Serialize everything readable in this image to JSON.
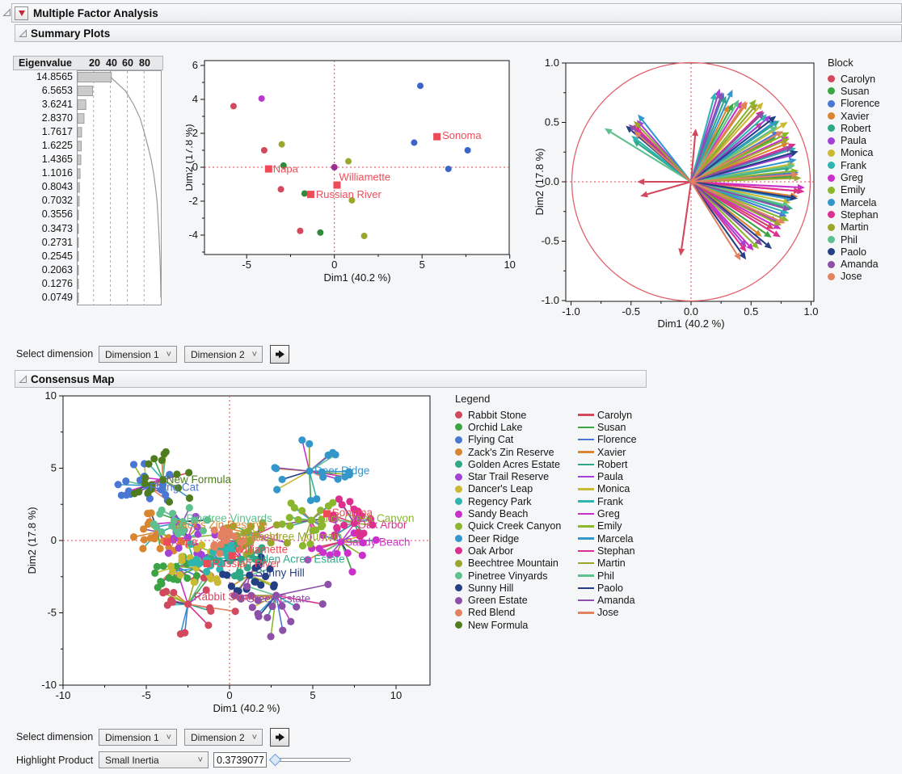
{
  "app": {
    "title": "Multiple Factor Analysis"
  },
  "sections": {
    "summary": "Summary Plots",
    "consensus": "Consensus Map"
  },
  "controls": {
    "select_dimension_label": "Select dimension",
    "dim1_value": "Dimension 1",
    "dim2_value": "Dimension 2",
    "highlight_label": "Highlight Product",
    "highlight_mode_value": "Small Inertia",
    "highlight_value": "0.3739077"
  },
  "palette": {
    "raters": [
      {
        "name": "Carolyn",
        "color": "#D2495E"
      },
      {
        "name": "Susan",
        "color": "#3BA545"
      },
      {
        "name": "Florence",
        "color": "#4A77D4"
      },
      {
        "name": "Xavier",
        "color": "#DA8530"
      },
      {
        "name": "Robert",
        "color": "#2EA886"
      },
      {
        "name": "Paula",
        "color": "#A242D6"
      },
      {
        "name": "Monica",
        "color": "#C9BA32"
      },
      {
        "name": "Frank",
        "color": "#2EB5B0"
      },
      {
        "name": "Greg",
        "color": "#CB30CB"
      },
      {
        "name": "Emily",
        "color": "#8BB62E"
      },
      {
        "name": "Marcela",
        "color": "#3397CB"
      },
      {
        "name": "Stephan",
        "color": "#DD2F90"
      },
      {
        "name": "Martin",
        "color": "#9AA62C"
      },
      {
        "name": "Phil",
        "color": "#5FC08F"
      },
      {
        "name": "Paolo",
        "color": "#253F85"
      },
      {
        "name": "Amanda",
        "color": "#8C50A9"
      },
      {
        "name": "Jose",
        "color": "#E28260"
      }
    ]
  },
  "chart_data": [
    {
      "id": "scree",
      "type": "bar",
      "title": "Eigenvalue",
      "top_axis_ticks": [
        20,
        40,
        60,
        80
      ],
      "eigenvalues": [
        "14.8565",
        "6.5653",
        "3.6241",
        "2.8370",
        "1.7617",
        "1.6225",
        "1.4365",
        "1.1016",
        "0.8043",
        "0.7032",
        "0.3556",
        "0.3473",
        "0.2731",
        "0.2545",
        "0.2063",
        "0.1276",
        "0.0749"
      ],
      "note": "bars are percent of total variance; gray line is cumulative percent"
    },
    {
      "id": "scores",
      "type": "scatter",
      "xlabel": "Dim1  (40.2 %)",
      "ylabel": "Dim2  (17.8 %)",
      "xlim": [
        -7.4,
        10.1
      ],
      "ylim": [
        -5.15,
        6.3
      ],
      "xticks": [
        -5,
        0,
        5,
        10
      ],
      "xminor": [
        -2.5,
        2.5,
        7.5
      ],
      "yticks": [
        -4,
        -2,
        0,
        2,
        4,
        6
      ],
      "yminor": [
        -5,
        -3,
        -1,
        1,
        3,
        5
      ],
      "crosshair_color": "#E8404A",
      "points": [
        {
          "x": -5.75,
          "y": 3.6,
          "color": "#D2495E"
        },
        {
          "x": -4.15,
          "y": 4.05,
          "color": "#B53ACB"
        },
        {
          "x": -4.0,
          "y": 1.0,
          "color": "#D2495E"
        },
        {
          "x": -3.0,
          "y": 1.35,
          "color": "#9AA62C"
        },
        {
          "x": -2.9,
          "y": 0.1,
          "color": "#2E8B3A"
        },
        {
          "x": -3.05,
          "y": -1.3,
          "color": "#D2495E"
        },
        {
          "x": -1.95,
          "y": -3.75,
          "color": "#D2495E"
        },
        {
          "x": -1.7,
          "y": -1.55,
          "color": "#2E8B3A"
        },
        {
          "x": -0.8,
          "y": -3.85,
          "color": "#2E8B3A"
        },
        {
          "x": 0.0,
          "y": 0.0,
          "color": "#992D90"
        },
        {
          "x": 0.8,
          "y": 0.35,
          "color": "#9AA62C"
        },
        {
          "x": 1.0,
          "y": -1.95,
          "color": "#9AA62C"
        },
        {
          "x": 1.7,
          "y": -4.05,
          "color": "#9AA62C"
        },
        {
          "x": 4.9,
          "y": 4.8,
          "color": "#3A66CC"
        },
        {
          "x": 4.55,
          "y": 1.45,
          "color": "#3A66CC"
        },
        {
          "x": 7.6,
          "y": 1.0,
          "color": "#3A66CC"
        },
        {
          "x": 6.5,
          "y": -0.1,
          "color": "#3A66CC"
        }
      ],
      "region_means": [
        {
          "x": 5.85,
          "y": 1.8,
          "label": "Sonoma",
          "dx": 0.3,
          "dy": 0.05
        },
        {
          "x": -3.75,
          "y": -0.1,
          "label": "Napa",
          "dx": 0.25,
          "dy": -0.02
        },
        {
          "x": 0.15,
          "y": -1.05,
          "label": "Williamette",
          "dx": 0.12,
          "dy": 0.45
        },
        {
          "x": -1.35,
          "y": -1.6,
          "label": "Russian River",
          "dx": 0.3,
          "dy": -0.02
        }
      ],
      "mean_color": "#EE4B58"
    },
    {
      "id": "partial_axes",
      "type": "scatter-arrows",
      "legend_title": "Block",
      "xlabel": "Dim1  (40.2 %)",
      "ylabel": "Dim2  (17.8 %)",
      "xtick_labels": [
        "-1.0",
        "-0.5",
        "0.0",
        "0.5",
        "1.0"
      ],
      "ytick_labels": [
        "1.0",
        "0.5",
        "0.0",
        "-0.5",
        "-1.0"
      ],
      "circle_radius": 1.0,
      "circle_color": "#E0636D",
      "crosshair_color": "#E8404A",
      "arrows": [
        [
          0,
          85,
          0.45
        ],
        [
          0,
          180,
          0.45
        ],
        [
          0,
          196,
          0.44
        ],
        [
          0,
          262,
          0.63
        ],
        [
          0,
          40,
          0.78
        ],
        [
          0,
          -5,
          0.92
        ],
        [
          0,
          -30,
          0.8
        ],
        [
          1,
          62,
          0.75
        ],
        [
          1,
          28,
          0.8
        ],
        [
          1,
          3,
          0.88
        ],
        [
          1,
          -35,
          0.82
        ],
        [
          2,
          70,
          0.8
        ],
        [
          2,
          30,
          0.85
        ],
        [
          2,
          5,
          0.9
        ],
        [
          2,
          -20,
          0.85
        ],
        [
          3,
          55,
          0.82
        ],
        [
          3,
          22,
          0.88
        ],
        [
          3,
          -8,
          0.9
        ],
        [
          3,
          -38,
          0.75
        ],
        [
          3,
          64,
          0.72
        ],
        [
          4,
          68,
          0.78
        ],
        [
          4,
          35,
          0.9
        ],
        [
          4,
          8,
          0.85
        ],
        [
          4,
          -15,
          0.88
        ],
        [
          4,
          144,
          0.6
        ],
        [
          5,
          73,
          0.82
        ],
        [
          5,
          40,
          0.87
        ],
        [
          5,
          15,
          0.9
        ],
        [
          5,
          -25,
          0.8
        ],
        [
          5,
          -50,
          0.72
        ],
        [
          5,
          131,
          0.69
        ],
        [
          6,
          48,
          0.9
        ],
        [
          6,
          32,
          0.95
        ],
        [
          6,
          10,
          0.88
        ],
        [
          6,
          -12,
          0.85
        ],
        [
          7,
          75,
          0.78
        ],
        [
          7,
          42,
          0.85
        ],
        [
          7,
          18,
          0.92
        ],
        [
          7,
          -18,
          0.86
        ],
        [
          7,
          142,
          0.63
        ],
        [
          8,
          58,
          0.8
        ],
        [
          8,
          25,
          0.9
        ],
        [
          8,
          -3,
          0.95
        ],
        [
          8,
          -28,
          0.85
        ],
        [
          8,
          -48,
          0.78
        ],
        [
          8,
          136,
          0.66
        ],
        [
          9,
          52,
          0.88
        ],
        [
          9,
          27,
          0.92
        ],
        [
          9,
          6,
          0.9
        ],
        [
          9,
          -22,
          0.88
        ],
        [
          9,
          -45,
          0.8
        ],
        [
          10,
          66,
          0.85
        ],
        [
          10,
          36,
          0.88
        ],
        [
          10,
          12,
          0.9
        ],
        [
          10,
          -10,
          0.87
        ],
        [
          10,
          128,
          0.72
        ],
        [
          11,
          45,
          0.85
        ],
        [
          11,
          20,
          0.93
        ],
        [
          11,
          -5,
          0.95
        ],
        [
          11,
          -32,
          0.88
        ],
        [
          11,
          -52,
          0.75
        ],
        [
          11,
          135,
          0.68
        ],
        [
          12,
          50,
          0.86
        ],
        [
          12,
          24,
          0.9
        ],
        [
          12,
          2,
          0.92
        ],
        [
          12,
          -26,
          0.84
        ],
        [
          12,
          133,
          0.7
        ],
        [
          13,
          60,
          0.8
        ],
        [
          13,
          33,
          0.86
        ],
        [
          13,
          9,
          0.88
        ],
        [
          13,
          -14,
          0.85
        ],
        [
          13,
          148,
          0.85
        ],
        [
          14,
          38,
          0.9
        ],
        [
          14,
          16,
          0.93
        ],
        [
          14,
          -9,
          0.9
        ],
        [
          14,
          -40,
          0.88
        ],
        [
          14,
          -55,
          0.8
        ],
        [
          14,
          139,
          0.72
        ],
        [
          15,
          71,
          0.8
        ],
        [
          15,
          44,
          0.85
        ],
        [
          15,
          19,
          0.9
        ],
        [
          15,
          -16,
          0.86
        ],
        [
          15,
          -42,
          0.8
        ],
        [
          15,
          137,
          0.71
        ],
        [
          16,
          56,
          0.82
        ],
        [
          16,
          29,
          0.88
        ],
        [
          16,
          4,
          0.9
        ],
        [
          16,
          -24,
          0.86
        ],
        [
          16,
          -58,
          0.78
        ],
        [
          16,
          138,
          0.64
        ]
      ]
    },
    {
      "id": "consensus",
      "type": "scatter",
      "legend_title": "Legend",
      "xlabel": "Dim1  (40.2 %)",
      "ylabel": "Dim2  (17.8 %)",
      "xlim": [
        -10,
        12
      ],
      "ylim": [
        -10,
        10
      ],
      "xticks": [
        -10,
        -5,
        0,
        5,
        10
      ],
      "xminor": [
        -7.5,
        -2.5,
        2.5,
        7.5
      ],
      "yticks": [
        -10,
        -5,
        0,
        5,
        10
      ],
      "yminor": [
        -7.5,
        -2.5,
        2.5,
        7.5
      ],
      "crosshair_color": "#E8404A",
      "points_per_cluster": 17,
      "seed": 20240,
      "products": [
        {
          "name": "Rabbit Stone",
          "color": "#D2495E",
          "x": -2.5,
          "y": -4.4,
          "spread": 2.3,
          "label": {
            "show": true,
            "dx": 0.35,
            "dy": 0.5
          }
        },
        {
          "name": "Orchid Lake",
          "color": "#3BA545",
          "x": -3.2,
          "y": -1.8,
          "spread": 1.7,
          "label": {
            "show": false
          }
        },
        {
          "name": "Flying Cat",
          "color": "#4A77D4",
          "x": -5.0,
          "y": 3.8,
          "spread": 1.6,
          "label": {
            "show": true,
            "dx": 0.2,
            "dy": -0.15
          }
        },
        {
          "name": "Zack's Zin Reserve",
          "color": "#DA8530",
          "x": -4.3,
          "y": 0.6,
          "spread": 1.4,
          "label": {
            "show": true,
            "dx": 1.0,
            "dy": 0.45
          }
        },
        {
          "name": "Golden Acres Estate",
          "color": "#2EA886",
          "x": 0.7,
          "y": -1.3,
          "spread": 1.5,
          "label": {
            "show": true,
            "dx": 0.25,
            "dy": 0.0
          }
        },
        {
          "name": "Star Trail Reserve",
          "color": "#A242D6",
          "x": -2.5,
          "y": 0.2,
          "spread": 1.5,
          "label": {
            "show": false
          }
        },
        {
          "name": "Dancer's Leap",
          "color": "#C9BA32",
          "x": -2.0,
          "y": -1.9,
          "spread": 1.6,
          "label": {
            "show": false
          }
        },
        {
          "name": "Regency Park",
          "color": "#2EB5B0",
          "x": -1.0,
          "y": -0.8,
          "spread": 1.5,
          "label": {
            "show": false
          }
        },
        {
          "name": "Sandy Beach",
          "color": "#CB30CB",
          "x": 6.7,
          "y": -0.1,
          "spread": 2.0,
          "label": {
            "show": true,
            "dx": 0.25,
            "dy": -0.05
          }
        },
        {
          "name": "Quick Creek Canyon",
          "color": "#8BB62E",
          "x": 4.9,
          "y": 1.4,
          "spread": 1.8,
          "label": {
            "show": true,
            "dx": 0.15,
            "dy": 0.1
          }
        },
        {
          "name": "Deer Ridge",
          "color": "#3397CB",
          "x": 4.8,
          "y": 4.8,
          "spread": 2.1,
          "label": {
            "show": true,
            "dx": 0.3,
            "dy": 0.0
          }
        },
        {
          "name": "Oak Arbor",
          "color": "#DD2F90",
          "x": 7.5,
          "y": 1.2,
          "spread": 1.7,
          "label": {
            "show": true,
            "dx": 0.2,
            "dy": -0.15
          }
        },
        {
          "name": "Beechtree Mountain",
          "color": "#9AA62C",
          "x": 1.6,
          "y": 0.4,
          "spread": 1.6,
          "label": {
            "show": true,
            "dx": -0.7,
            "dy": -0.15
          }
        },
        {
          "name": "Pinetree Vinyards",
          "color": "#5FC08F",
          "x": -2.8,
          "y": 1.3,
          "spread": 1.4,
          "label": {
            "show": true,
            "dx": 0.2,
            "dy": 0.2
          }
        },
        {
          "name": "Sunny Hill",
          "color": "#253F85",
          "x": 1.2,
          "y": -2.4,
          "spread": 1.4,
          "label": {
            "show": true,
            "dx": 0.35,
            "dy": 0.15
          }
        },
        {
          "name": "Green Estate",
          "color": "#8C50A9",
          "x": 2.8,
          "y": -3.8,
          "spread": 2.6,
          "label": {
            "show": true,
            "dx": -1.8,
            "dy": -0.25
          }
        },
        {
          "name": "Red Blend",
          "color": "#E28260",
          "x": -0.2,
          "y": 0.0,
          "spread": 0.9,
          "label": {
            "show": true,
            "dx": 0.1,
            "dy": 0.2
          }
        },
        {
          "name": "New Formula",
          "color": "#4E7C1E",
          "x": -4.0,
          "y": 4.2,
          "spread": 1.8,
          "label": {
            "show": true,
            "dx": 0.2,
            "dy": 0.0
          }
        }
      ],
      "region_means": [
        {
          "x": 5.85,
          "y": 1.85,
          "label": "Sonoma",
          "dx": 0.3,
          "dy": 0.05
        },
        {
          "x": -3.75,
          "y": -0.1,
          "label": "Napa",
          "dx": 0.25,
          "dy": -0.02
        },
        {
          "x": 0.15,
          "y": -1.05,
          "label": "Williamette",
          "dx": 0.15,
          "dy": 0.4
        },
        {
          "x": -1.35,
          "y": -1.6,
          "label": "Russian River",
          "dx": 0.3,
          "dy": -0.02
        }
      ],
      "mean_color": "#EE4B58"
    }
  ]
}
